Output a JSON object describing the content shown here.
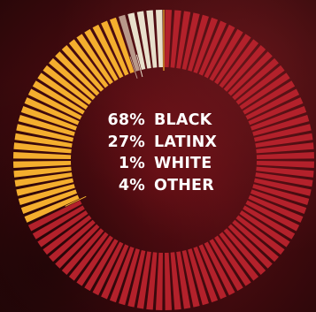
{
  "colors": {
    "black": "#b3212b",
    "latinx": "#f4ae2e",
    "white": "#b8988a",
    "other": "#e8e0cc",
    "separator": "#3a0a0d"
  },
  "chart_data": {
    "type": "pie",
    "series": [
      {
        "name": "BLACK",
        "value": 68,
        "label": "68%",
        "color": "#b3212b"
      },
      {
        "name": "LATINX",
        "value": 27,
        "label": "27%",
        "color": "#f4ae2e"
      },
      {
        "name": "WHITE",
        "value": 1,
        "label": "1%",
        "color": "#b8988a"
      },
      {
        "name": "OTHER",
        "value": 4,
        "label": "4%",
        "color": "#e8e0cc"
      }
    ]
  }
}
